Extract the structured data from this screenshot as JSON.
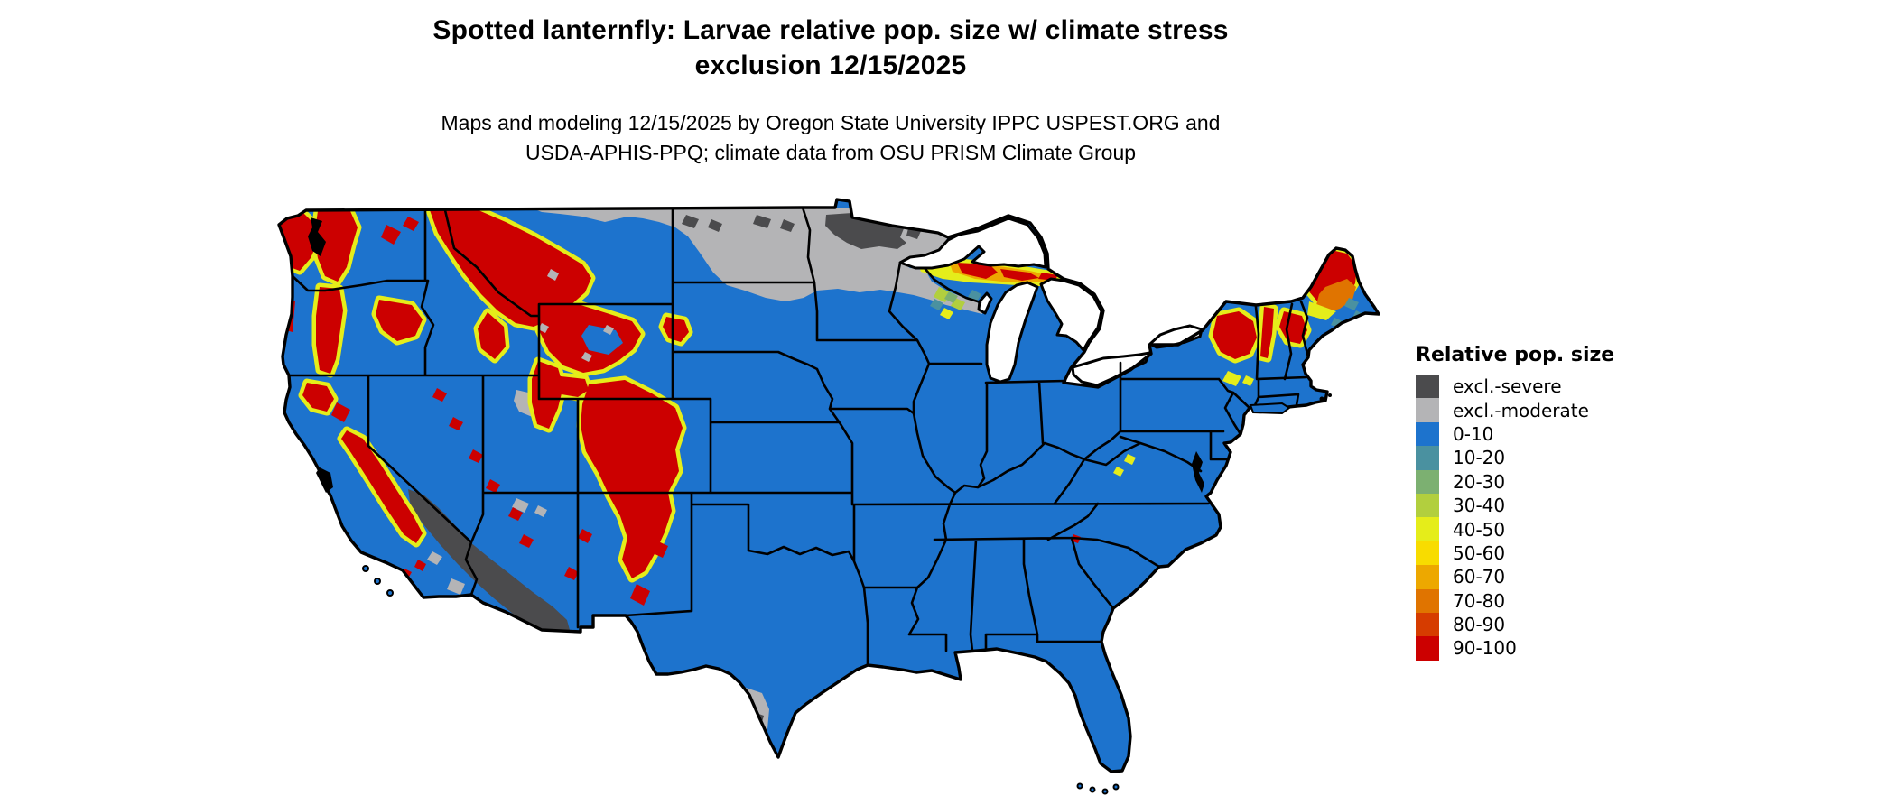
{
  "header": {
    "title_line1": "Spotted lanternfly: Larvae relative pop. size w/ climate stress",
    "title_line2": "exclusion 12/15/2025",
    "subtitle_line1": "Maps and modeling 12/15/2025 by Oregon State University IPPC USPEST.ORG and",
    "subtitle_line2": "USDA-APHIS-PPQ; climate data from OSU PRISM Climate Group"
  },
  "legend": {
    "title": "Relative pop. size",
    "items": [
      {
        "label": "excl.-severe",
        "palette": "excl_severe"
      },
      {
        "label": "excl.-moderate",
        "palette": "excl_moderate"
      },
      {
        "label": "0-10",
        "palette": "pop_0_10"
      },
      {
        "label": "10-20",
        "palette": "pop_10_20"
      },
      {
        "label": "20-30",
        "palette": "pop_20_30"
      },
      {
        "label": "30-40",
        "palette": "pop_30_40"
      },
      {
        "label": "40-50",
        "palette": "pop_40_50"
      },
      {
        "label": "50-60",
        "palette": "pop_50_60"
      },
      {
        "label": "60-70",
        "palette": "pop_60_70"
      },
      {
        "label": "70-80",
        "palette": "pop_70_80"
      },
      {
        "label": "80-90",
        "palette": "pop_80_90"
      },
      {
        "label": "90-100",
        "palette": "pop_90_100"
      }
    ]
  },
  "palette": {
    "excl_severe": "#4b4b4d",
    "excl_moderate": "#b4b4b6",
    "pop_0_10": "#1d73cd",
    "pop_10_20": "#4a91a0",
    "pop_20_30": "#7cb071",
    "pop_30_40": "#b2cf3e",
    "pop_40_50": "#e5ed1a",
    "pop_50_60": "#f8dc00",
    "pop_60_70": "#eda800",
    "pop_70_80": "#e07400",
    "pop_80_90": "#d63c00",
    "pop_90_100": "#cc0000",
    "map_border": "#000000",
    "water": "#ffffff"
  }
}
